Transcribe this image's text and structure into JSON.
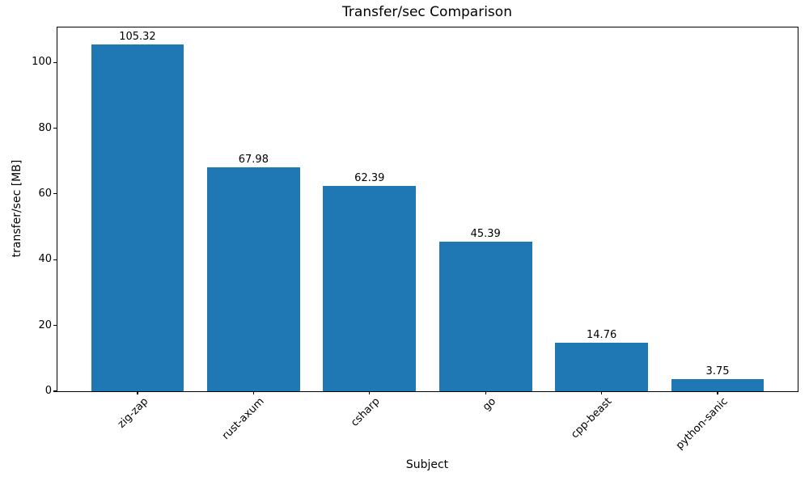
{
  "chart_data": {
    "type": "bar",
    "title": "Transfer/sec Comparison",
    "xlabel": "Subject",
    "ylabel": "transfer/sec [MB]",
    "categories": [
      "zig-zap",
      "rust-axum",
      "csharp",
      "go",
      "cpp-beast",
      "python-sanic"
    ],
    "values": [
      105.32,
      67.98,
      62.39,
      45.39,
      14.76,
      3.75
    ],
    "bar_labels": [
      "105.32",
      "67.98",
      "62.39",
      "45.39",
      "14.76",
      "3.75"
    ],
    "yticks": [
      "0",
      "20",
      "40",
      "60",
      "80",
      "100"
    ],
    "ytick_values": [
      0,
      20,
      40,
      60,
      80,
      100
    ],
    "ylim": [
      0,
      110.6
    ],
    "bar_color": "#1f77b4",
    "text_color": "#000000",
    "xtick_rotation_deg": 45,
    "grid": false,
    "legend_position": "none"
  }
}
